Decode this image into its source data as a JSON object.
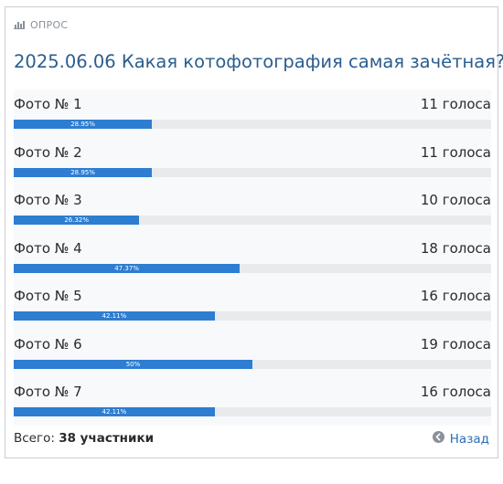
{
  "poll": {
    "header_label": "ОПРОС",
    "title": "2025.06.06 Какая котофотография самая зачётная?",
    "options": [
      {
        "label": "Фото № 1",
        "votes": "11 голоса",
        "percent_label": "28.95%",
        "percent": 28.95
      },
      {
        "label": "Фото № 2",
        "votes": "11 голоса",
        "percent_label": "28.95%",
        "percent": 28.95
      },
      {
        "label": "Фото № 3",
        "votes": "10 голоса",
        "percent_label": "26.32%",
        "percent": 26.32
      },
      {
        "label": "Фото № 4",
        "votes": "18 голоса",
        "percent_label": "47.37%",
        "percent": 47.37
      },
      {
        "label": "Фото № 5",
        "votes": "16 голоса",
        "percent_label": "42.11%",
        "percent": 42.11
      },
      {
        "label": "Фото № 6",
        "votes": "19 голоса",
        "percent_label": "50%",
        "percent": 50
      },
      {
        "label": "Фото № 7",
        "votes": "16 голоса",
        "percent_label": "42.11%",
        "percent": 42.11
      }
    ],
    "footer": {
      "total_prefix": "Всего:",
      "total_value": "38 участники",
      "back_label": "Назад"
    }
  },
  "colors": {
    "title": "#2a5d8f",
    "bar_fill": "#2d7dd2",
    "bar_track": "#e8ebee",
    "link": "#2a6fb5"
  },
  "icons": {
    "header": "bar-chart-icon",
    "back": "arrow-left-circle-icon"
  }
}
